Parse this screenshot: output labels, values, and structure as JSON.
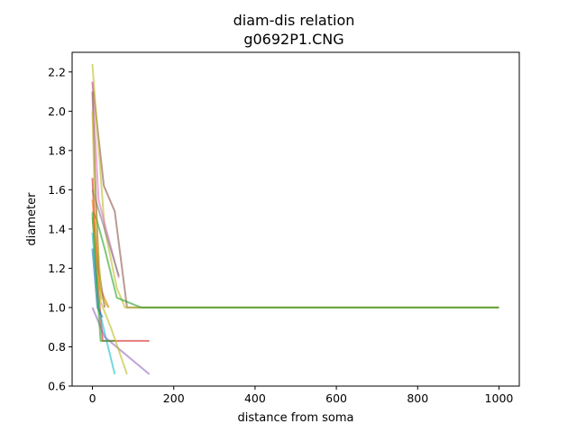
{
  "chart_data": {
    "type": "line",
    "title": "diam-dis relation",
    "subtitle": "g0692P1.CNG",
    "xlabel": "distance from soma",
    "ylabel": "diameter",
    "xlim": [
      -50,
      1050
    ],
    "ylim": [
      0.6,
      2.3
    ],
    "xticks": [
      0,
      200,
      400,
      600,
      800,
      1000
    ],
    "yticks": [
      0.6,
      0.8,
      1.0,
      1.2,
      1.4,
      1.6,
      1.8,
      2.0,
      2.2
    ],
    "xtick_labels": [
      "0",
      "200",
      "400",
      "600",
      "800",
      "1000"
    ],
    "ytick_labels": [
      "0.6",
      "0.8",
      "1.0",
      "1.2",
      "1.4",
      "1.6",
      "1.8",
      "2.0",
      "2.2"
    ],
    "grid": false,
    "legend": "none",
    "series": [
      {
        "color": "#8c564b",
        "x": [
          0,
          28,
          55,
          85,
          1000
        ],
        "y": [
          2.15,
          1.62,
          1.49,
          1.0,
          1.0
        ]
      },
      {
        "color": "#bcbd22",
        "x": [
          0,
          30,
          60,
          80,
          1000
        ],
        "y": [
          2.24,
          1.4,
          1.1,
          1.0,
          1.0
        ]
      },
      {
        "color": "#2ca02c",
        "x": [
          0,
          10,
          30,
          60,
          120,
          1000
        ],
        "y": [
          1.49,
          1.45,
          1.3,
          1.05,
          1.0,
          1.0
        ]
      },
      {
        "color": "#e377c2",
        "x": [
          0,
          15,
          40,
          65
        ],
        "y": [
          2.15,
          1.55,
          1.35,
          1.15
        ]
      },
      {
        "color": "#d62728",
        "x": [
          0,
          10,
          25,
          80,
          140
        ],
        "y": [
          1.66,
          1.2,
          0.83,
          0.83,
          0.83
        ]
      },
      {
        "color": "#17becf",
        "x": [
          0,
          15,
          35,
          55
        ],
        "y": [
          1.38,
          1.0,
          0.83,
          0.66
        ]
      },
      {
        "color": "#9467bd",
        "x": [
          0,
          10,
          30,
          140
        ],
        "y": [
          1.0,
          0.95,
          0.85,
          0.66
        ]
      },
      {
        "color": "#bcbd22",
        "x": [
          0,
          20,
          45,
          85
        ],
        "y": [
          1.46,
          1.03,
          0.9,
          0.66
        ]
      },
      {
        "color": "#1f77b4",
        "x": [
          0,
          12,
          25
        ],
        "y": [
          1.3,
          1.0,
          0.95
        ]
      },
      {
        "color": "#ff7f0e",
        "x": [
          0,
          18,
          40
        ],
        "y": [
          1.55,
          1.1,
          1.0
        ]
      },
      {
        "color": "#2ca02c",
        "x": [
          0,
          8,
          20,
          55
        ],
        "y": [
          1.48,
          1.2,
          0.83,
          0.83
        ]
      },
      {
        "color": "#7f7f7f",
        "x": [
          0,
          30,
          65
        ],
        "y": [
          1.6,
          1.4,
          1.16
        ]
      },
      {
        "color": "#8c564b",
        "x": [
          0,
          6,
          15,
          30
        ],
        "y": [
          2.1,
          1.7,
          1.2,
          1.0
        ]
      },
      {
        "color": "#bcbd22",
        "x": [
          0,
          5,
          22,
          40
        ],
        "y": [
          2.0,
          1.6,
          1.05,
          1.0
        ]
      }
    ]
  }
}
